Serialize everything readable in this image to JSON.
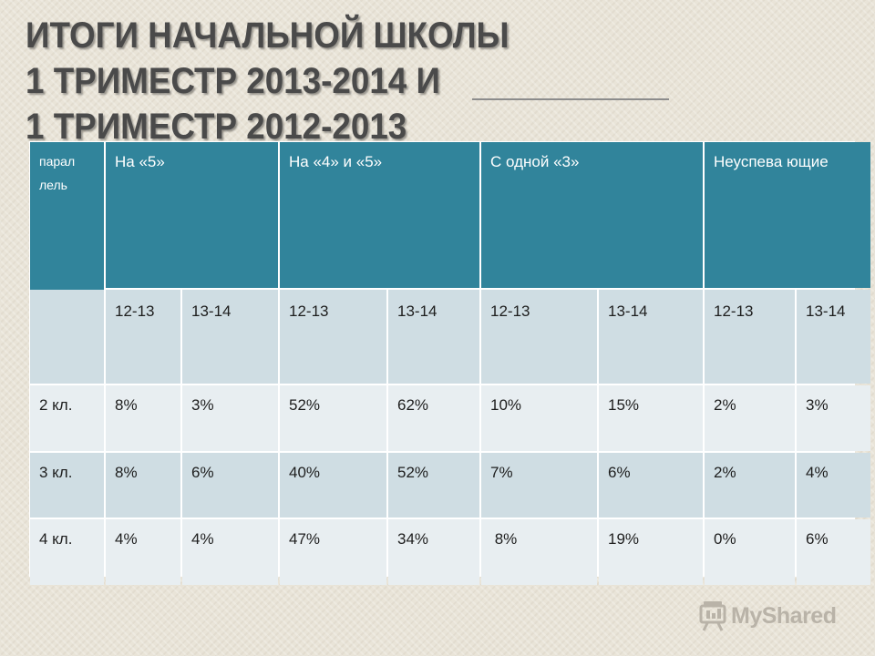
{
  "slide": {
    "title_lines": [
      "ИТОГИ НАЧАЛЬНОЙ ШКОЛЫ",
      "1 ТРИМЕСТР  2013-2014 И",
      "1 ТРИМЕСТР   2012-2013"
    ],
    "text_color": "#4a4a4a",
    "header_color": "#31849b"
  },
  "table": {
    "headers": {
      "parallel": "парал лель",
      "on5": "На «5»",
      "on45": "На «4» и «5»",
      "one3": "С одной «3»",
      "failing": "Неуспева ющие"
    },
    "years": [
      "12-13",
      "13-14",
      "12-13",
      "13-14",
      "12-13",
      "13-14",
      "12-13",
      "13-14"
    ],
    "rows": [
      {
        "label": "2 кл.",
        "values": [
          "8%",
          "3%",
          "52%",
          "62%",
          "10%",
          "15%",
          "2%",
          "3%"
        ]
      },
      {
        "label": "3 кл.",
        "values": [
          "8%",
          "6%",
          "40%",
          "52%",
          "7%",
          "6%",
          "2%",
          "4%"
        ]
      },
      {
        "label": "4 кл.",
        "values": [
          "4%",
          "4%",
          "47%",
          "34%",
          " 8%",
          "19%",
          "0%",
          "6%"
        ]
      }
    ]
  },
  "watermark": {
    "text": "MyShared",
    "icon": "presentation-board-icon"
  }
}
